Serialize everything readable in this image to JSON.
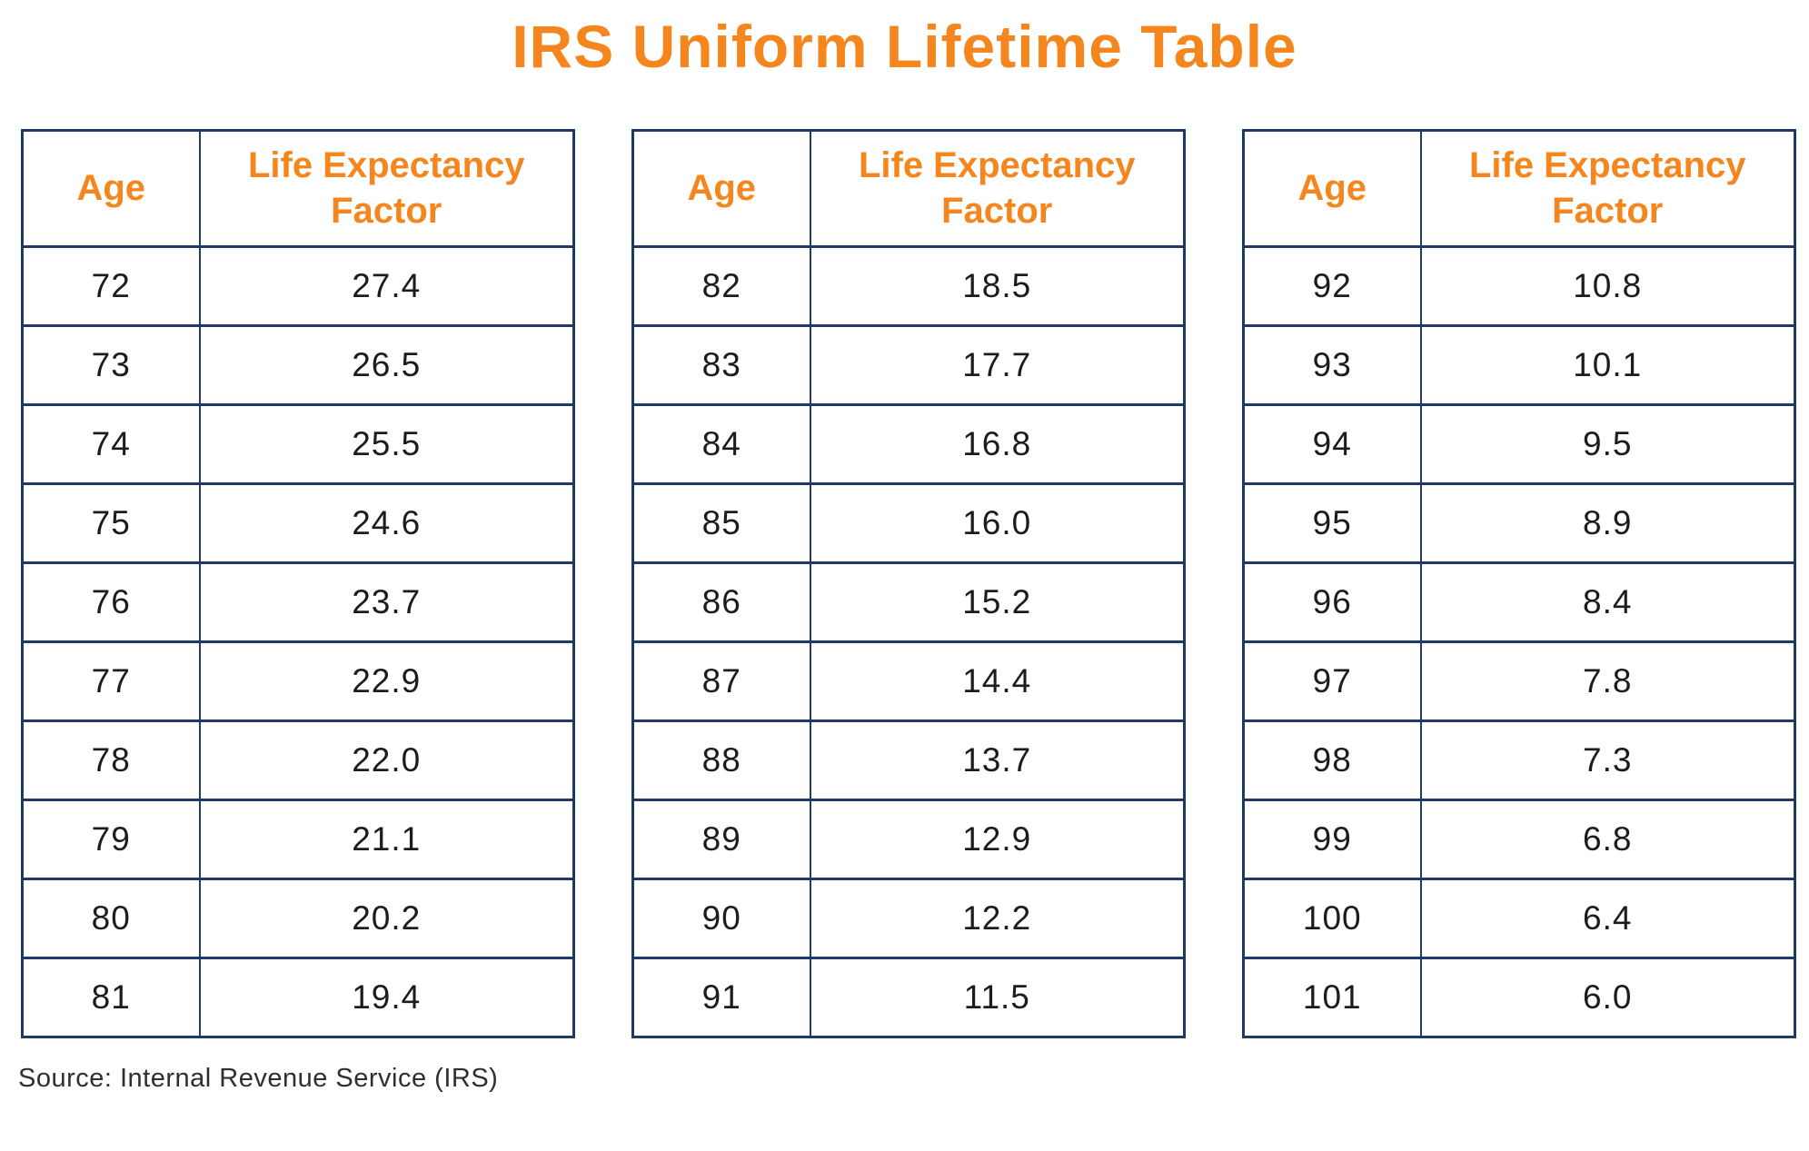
{
  "title": "IRS Uniform Lifetime Table",
  "source_note": "Source: Internal Revenue Service (IRS)",
  "columns": [
    "Age",
    "Life Expectancy Factor"
  ],
  "tables": [
    {
      "rows": [
        [
          "72",
          "27.4"
        ],
        [
          "73",
          "26.5"
        ],
        [
          "74",
          "25.5"
        ],
        [
          "75",
          "24.6"
        ],
        [
          "76",
          "23.7"
        ],
        [
          "77",
          "22.9"
        ],
        [
          "78",
          "22.0"
        ],
        [
          "79",
          "21.1"
        ],
        [
          "80",
          "20.2"
        ],
        [
          "81",
          "19.4"
        ]
      ]
    },
    {
      "rows": [
        [
          "82",
          "18.5"
        ],
        [
          "83",
          "17.7"
        ],
        [
          "84",
          "16.8"
        ],
        [
          "85",
          "16.0"
        ],
        [
          "86",
          "15.2"
        ],
        [
          "87",
          "14.4"
        ],
        [
          "88",
          "13.7"
        ],
        [
          "89",
          "12.9"
        ],
        [
          "90",
          "12.2"
        ],
        [
          "91",
          "11.5"
        ]
      ]
    },
    {
      "rows": [
        [
          "92",
          "10.8"
        ],
        [
          "93",
          "10.1"
        ],
        [
          "94",
          "9.5"
        ],
        [
          "95",
          "8.9"
        ],
        [
          "96",
          "8.4"
        ],
        [
          "97",
          "7.8"
        ],
        [
          "98",
          "7.3"
        ],
        [
          "99",
          "6.8"
        ],
        [
          "100",
          "6.4"
        ],
        [
          "101",
          "6.0"
        ]
      ]
    }
  ],
  "colors": {
    "accent_orange": "#F5861D",
    "border_navy": "#1F3A66",
    "data_text": "#1C1C1C",
    "source_text": "#2F2F2F"
  },
  "chart_data": {
    "type": "table",
    "title": "IRS Uniform Lifetime Table",
    "columns": [
      "Age",
      "Life Expectancy Factor"
    ],
    "rows": [
      [
        72,
        27.4
      ],
      [
        73,
        26.5
      ],
      [
        74,
        25.5
      ],
      [
        75,
        24.6
      ],
      [
        76,
        23.7
      ],
      [
        77,
        22.9
      ],
      [
        78,
        22.0
      ],
      [
        79,
        21.1
      ],
      [
        80,
        20.2
      ],
      [
        81,
        19.4
      ],
      [
        82,
        18.5
      ],
      [
        83,
        17.7
      ],
      [
        84,
        16.8
      ],
      [
        85,
        16.0
      ],
      [
        86,
        15.2
      ],
      [
        87,
        14.4
      ],
      [
        88,
        13.7
      ],
      [
        89,
        12.9
      ],
      [
        90,
        12.2
      ],
      [
        91,
        11.5
      ],
      [
        92,
        10.8
      ],
      [
        93,
        10.1
      ],
      [
        94,
        9.5
      ],
      [
        95,
        8.9
      ],
      [
        96,
        8.4
      ],
      [
        97,
        7.8
      ],
      [
        98,
        7.3
      ],
      [
        99,
        6.8
      ],
      [
        100,
        6.4
      ],
      [
        101,
        6.0
      ]
    ],
    "source": "Internal Revenue Service (IRS)",
    "layout": "three side-by-side two-column tables, 10 rows each"
  }
}
